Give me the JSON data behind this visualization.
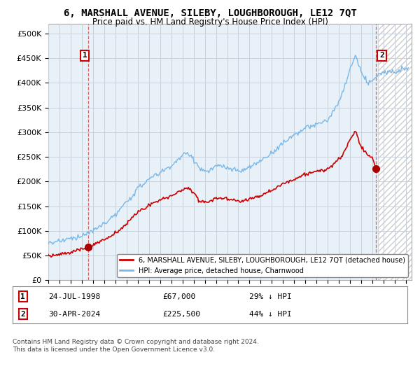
{
  "title": "6, MARSHALL AVENUE, SILEBY, LOUGHBOROUGH, LE12 7QT",
  "subtitle": "Price paid vs. HM Land Registry's House Price Index (HPI)",
  "legend_line1": "6, MARSHALL AVENUE, SILEBY, LOUGHBOROUGH, LE12 7QT (detached house)",
  "legend_line2": "HPI: Average price, detached house, Charnwood",
  "transaction1_date": "24-JUL-1998",
  "transaction1_price": "£67,000",
  "transaction1_hpi": "29% ↓ HPI",
  "transaction1_year": 1998.56,
  "transaction1_value": 67000,
  "transaction2_date": "30-APR-2024",
  "transaction2_price": "£225,500",
  "transaction2_hpi": "44% ↓ HPI",
  "transaction2_year": 2024.33,
  "transaction2_value": 225500,
  "hpi_color": "#7ab8e8",
  "price_color": "#cc0000",
  "marker_color": "#aa0000",
  "footnote": "Contains HM Land Registry data © Crown copyright and database right 2024.\nThis data is licensed under the Open Government Licence v3.0.",
  "ylim": [
    0,
    520000
  ],
  "yticks": [
    0,
    50000,
    100000,
    150000,
    200000,
    250000,
    300000,
    350000,
    400000,
    450000,
    500000
  ],
  "background_color": "#ffffff",
  "plot_bg_color": "#e8f0f8",
  "grid_color": "#c8d0dc"
}
